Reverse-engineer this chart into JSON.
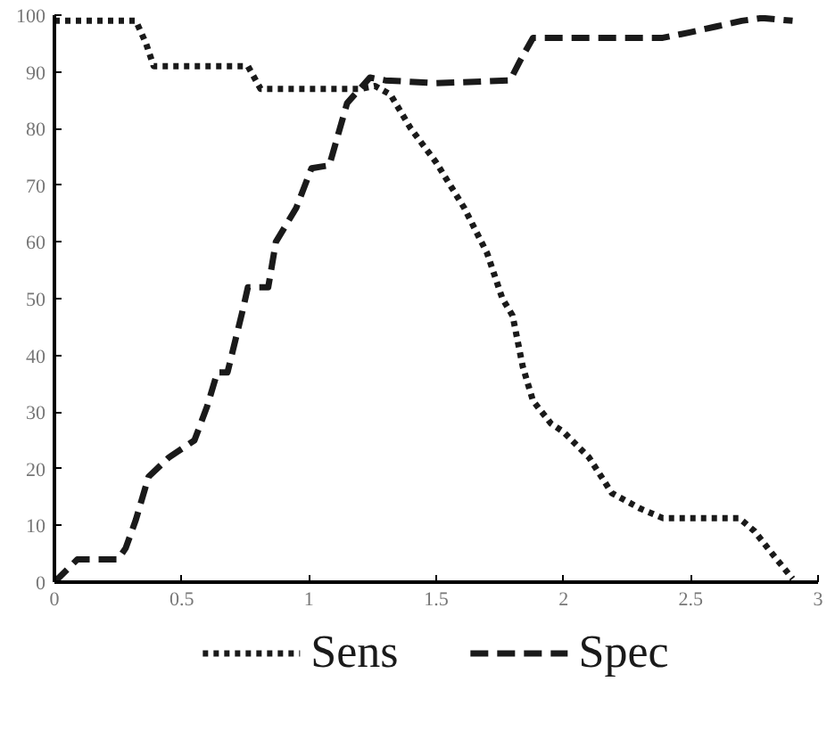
{
  "chart_data": {
    "type": "line",
    "xlim": [
      0,
      3
    ],
    "ylim": [
      0,
      100
    ],
    "xticks": [
      0,
      0.5,
      1,
      1.5,
      2,
      2.5,
      3
    ],
    "yticks": [
      0,
      10,
      20,
      30,
      40,
      50,
      60,
      70,
      80,
      90,
      100
    ],
    "grid": false,
    "legend": "bottom",
    "marker": "none",
    "series": [
      {
        "name": "Sens",
        "color": "#1a1a1a",
        "line_style": "dotted",
        "x": [
          0,
          0.32,
          0.36,
          0.39,
          0.76,
          0.81,
          1.2,
          1.26,
          1.32,
          1.4,
          1.5,
          1.61,
          1.7,
          1.76,
          1.8,
          1.84,
          1.88,
          1.95,
          2.0,
          2.1,
          2.19,
          2.3,
          2.39,
          2.69,
          2.75,
          2.82,
          2.9
        ],
        "values": [
          99,
          99,
          95,
          91,
          91,
          87,
          87,
          87.5,
          86,
          80,
          74,
          66,
          58,
          50,
          47,
          38,
          32,
          28,
          26.5,
          22,
          15.7,
          13,
          11.3,
          11.3,
          9,
          5,
          0.6
        ]
      },
      {
        "name": "Spec",
        "color": "#1a1a1a",
        "line_style": "dashed",
        "x": [
          0,
          0.09,
          0.12,
          0.25,
          0.28,
          0.32,
          0.37,
          0.45,
          0.55,
          0.6,
          0.64,
          0.68,
          0.74,
          0.76,
          0.84,
          0.87,
          0.95,
          1.01,
          1.08,
          1.15,
          1.24,
          1.3,
          1.5,
          1.79,
          1.83,
          1.88,
          2.39,
          2.5,
          2.6,
          2.7,
          2.78,
          2.9
        ],
        "values": [
          0,
          4,
          4,
          4,
          6,
          11,
          18.6,
          22,
          25,
          31,
          37,
          37,
          48,
          52,
          52,
          60,
          66,
          73,
          73.5,
          84.5,
          89,
          88.5,
          88,
          88.5,
          92,
          96,
          96,
          97,
          98,
          99,
          99.5,
          99
        ]
      }
    ]
  }
}
